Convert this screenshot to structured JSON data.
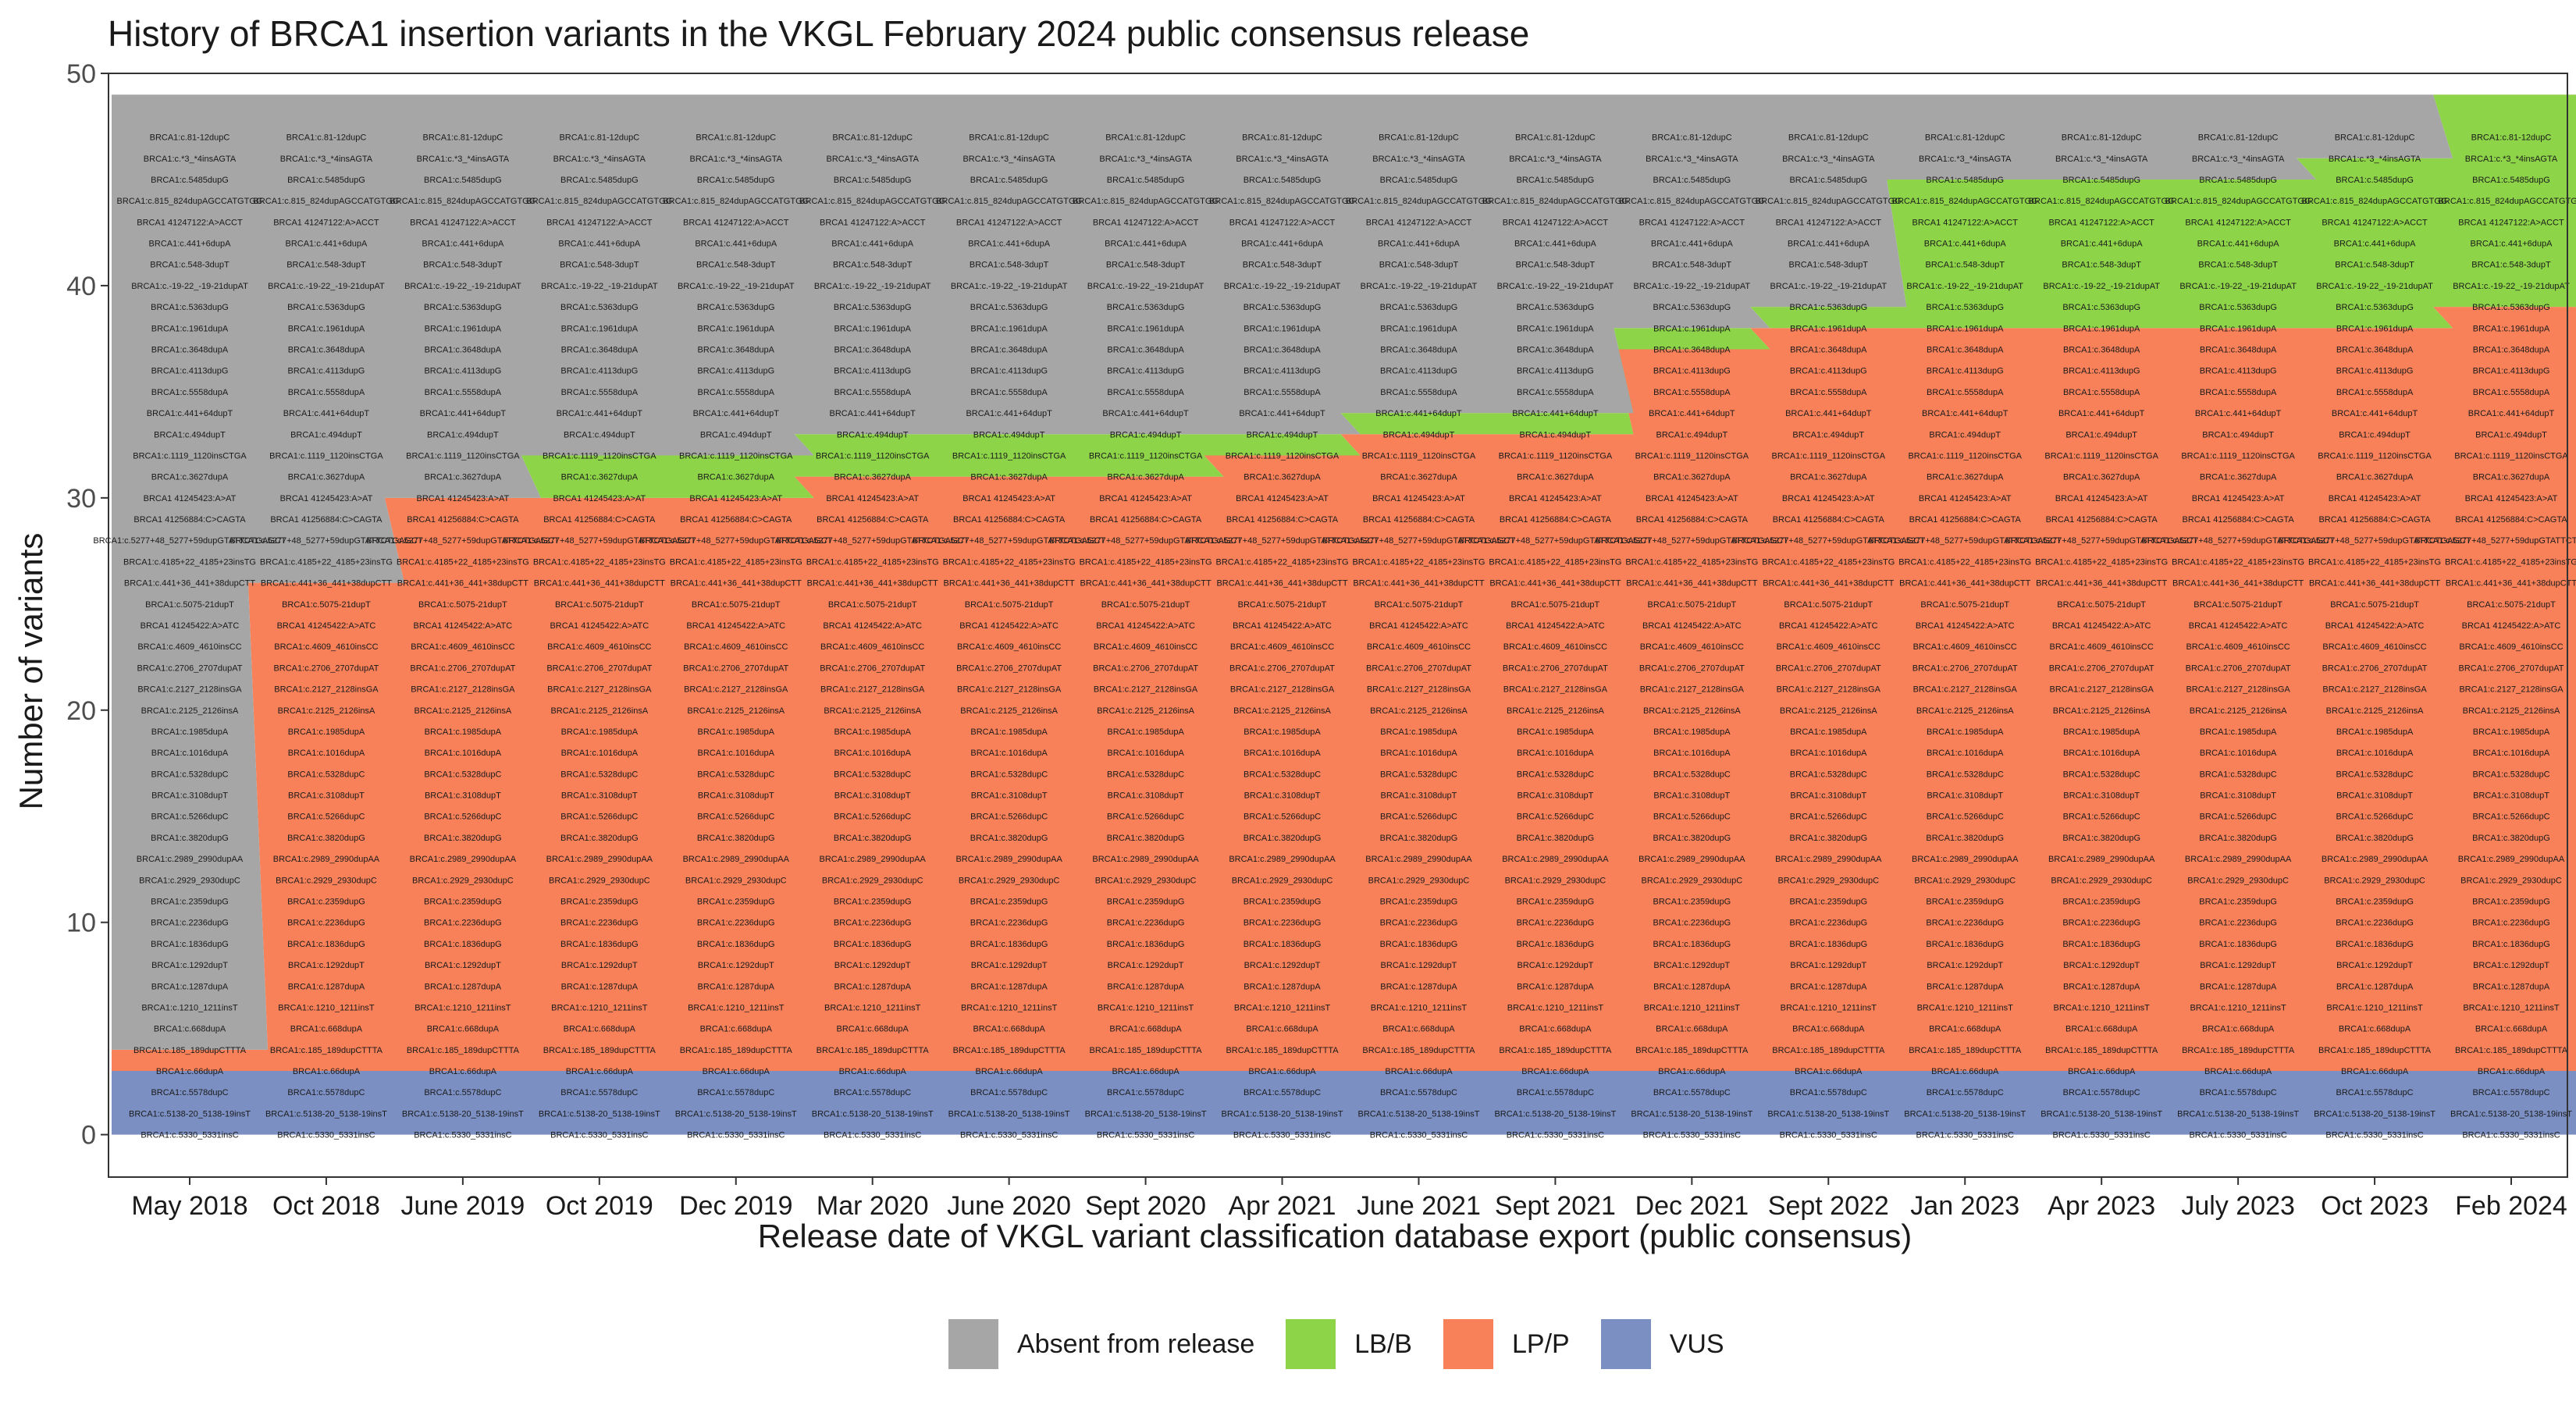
{
  "chart_data": {
    "type": "area",
    "title": "History of BRCA1 insertion variants in the VKGL February 2024 public consensus release",
    "xlabel": "Release date of VKGL variant classification database export (public consensus)",
    "ylabel": "Number of variants",
    "ylim": [
      -2,
      50
    ],
    "yticks": [
      0,
      10,
      20,
      30,
      40,
      50
    ],
    "grid": false,
    "legend_position": "bottom",
    "categories": [
      "May 2018",
      "Oct 2018",
      "June 2019",
      "Oct 2019",
      "Dec 2019",
      "Mar 2020",
      "June 2020",
      "Sept 2020",
      "Apr 2021",
      "June 2021",
      "Sept 2021",
      "Dec 2021",
      "Sept 2022",
      "Jan 2023",
      "Apr 2023",
      "July 2023",
      "Oct 2023",
      "Feb 2024"
    ],
    "series": [
      {
        "name": "VUS",
        "color": "#7b8fc2",
        "values": [
          3,
          3,
          3,
          3,
          3,
          3,
          3,
          3,
          3,
          3,
          3,
          3,
          3,
          3,
          3,
          3,
          3,
          3
        ]
      },
      {
        "name": "LP/P",
        "color": "#f8815a",
        "values": [
          1,
          23,
          27,
          27,
          27,
          28,
          28,
          28,
          29,
          30,
          30,
          34,
          35,
          35,
          35,
          35,
          35,
          36
        ]
      },
      {
        "name": "LB/B",
        "color": "#8dd448",
        "values": [
          0,
          0,
          0,
          2,
          2,
          2,
          2,
          2,
          1,
          1,
          1,
          1,
          1,
          7,
          7,
          7,
          8,
          10
        ]
      },
      {
        "name": "Absent from release",
        "color": "#a6a6a6",
        "values": [
          45,
          23,
          19,
          17,
          17,
          16,
          16,
          16,
          16,
          15,
          15,
          11,
          10,
          4,
          4,
          4,
          3,
          0
        ]
      }
    ],
    "variants": [
      "BRCA1:c.81-12dupC",
      "BRCA1:c.*3_*4insAGTA",
      "BRCA1:c.5485dupG",
      "BRCA1:c.815_824dupAGCCATGTGG",
      "BRCA1 41247122:A>ACCT",
      "BRCA1:c.441+6dupA",
      "BRCA1:c.548-3dupT",
      "BRCA1:c.-19-22_-19-21dupAT",
      "BRCA1:c.5363dupG",
      "BRCA1:c.1961dupA",
      "BRCA1:c.3648dupA",
      "BRCA1:c.4113dupG",
      "BRCA1:c.5558dupA",
      "BRCA1:c.441+64dupT",
      "BRCA1:c.494dupT",
      "BRCA1:c.1119_1120insCTGA",
      "BRCA1:c.3627dupA",
      "BRCA1 41245423:A>AT",
      "BRCA1 41256884:C>CAGTA",
      "BRCA1:c.5277+48_5277+59dupGTATTCTGAGCT",
      "BRCA1:c.4185+22_4185+23insTG",
      "BRCA1:c.441+36_441+38dupCTT",
      "BRCA1:c.5075-21dupT",
      "BRCA1 41245422:A>ATC",
      "BRCA1:c.4609_4610insCC",
      "BRCA1:c.2706_2707dupAT",
      "BRCA1:c.2127_2128insGA",
      "BRCA1:c.2125_2126insA",
      "BRCA1:c.1985dupA",
      "BRCA1:c.1016dupA",
      "BRCA1:c.5328dupC",
      "BRCA1:c.3108dupT",
      "BRCA1:c.5266dupC",
      "BRCA1:c.3820dupG",
      "BRCA1:c.2989_2990dupAA",
      "BRCA1:c.2929_2930dupC",
      "BRCA1:c.2359dupG",
      "BRCA1:c.2236dupG",
      "BRCA1:c.1836dupG",
      "BRCA1:c.1292dupT",
      "BRCA1:c.1287dupA",
      "BRCA1:c.1210_1211insT",
      "BRCA1:c.668dupA",
      "BRCA1:c.185_189dupCTTTA",
      "BRCA1:c.66dupA",
      "BRCA1:c.5578dupC",
      "BRCA1:c.5138-20_5138-19insT",
      "BRCA1:c.5330_5331insC"
    ]
  }
}
